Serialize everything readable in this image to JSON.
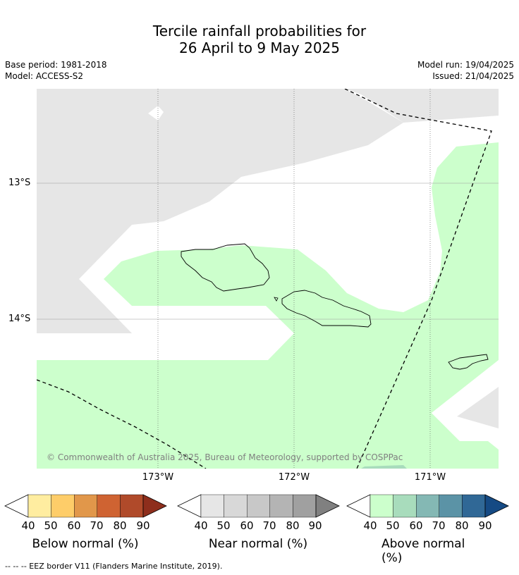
{
  "title_line1": "Tercile rainfall probabilities for",
  "title_line2": "26 April to 9 May 2025",
  "base_period": "Base period: 1981-2018",
  "model": "Model: ACCESS-S2",
  "model_run": "Model run: 19/04/2025",
  "issued": "Issued: 21/04/2025",
  "map": {
    "lat_labels": [
      "13°S",
      "14°S"
    ],
    "lon_labels": [
      "173°W",
      "172°W",
      "171°W"
    ],
    "copyright": "© Commonwealth of Australia 2025, Bureau of Meteorology, supported by COSPPac",
    "colors": {
      "no_data_grey": "#e6e6e6",
      "above_40": "#ccffcc",
      "above_50": "#a8dcbc",
      "ocean_white": "#ffffff",
      "coast": "#000000"
    }
  },
  "colorbars": [
    {
      "title": "Below normal (%)",
      "ticks": [
        "40",
        "50",
        "60",
        "70",
        "80",
        "90"
      ],
      "colors": [
        "#ffffff",
        "#ffeda0",
        "#fecd69",
        "#e1974a",
        "#cf6332",
        "#b04a2a",
        "#8e2e1c"
      ]
    },
    {
      "title": "Near normal (%)",
      "ticks": [
        "40",
        "50",
        "60",
        "70",
        "80",
        "90"
      ],
      "colors": [
        "#ffffff",
        "#e6e6e6",
        "#d8d8d8",
        "#c8c8c8",
        "#b4b4b4",
        "#a0a0a0",
        "#808080"
      ]
    },
    {
      "title": "Above normal (%)",
      "ticks": [
        "40",
        "50",
        "60",
        "70",
        "80",
        "90"
      ],
      "colors": [
        "#ffffff",
        "#ccffcc",
        "#a8dcbc",
        "#84b8b4",
        "#5b93a6",
        "#306896",
        "#154a84"
      ]
    }
  ],
  "footnote": "-- -- -- EEZ border V11 (Flanders Marine Institute, 2019)."
}
